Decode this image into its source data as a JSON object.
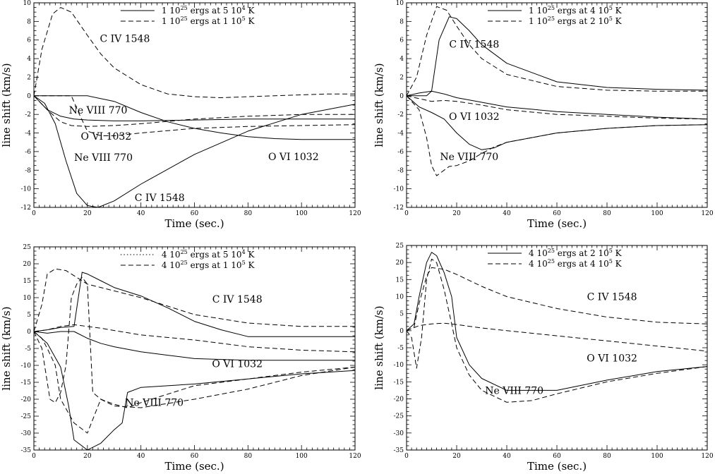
{
  "chart_data": [
    {
      "type": "line",
      "xlabel": "Time (sec.)",
      "ylabel": "line shift (km/s)",
      "xlim": [
        0,
        120
      ],
      "ylim": [
        -12,
        10
      ],
      "xticks": [
        0,
        20,
        40,
        60,
        80,
        100,
        120
      ],
      "yticks": [
        -12,
        -10,
        -8,
        -6,
        -4,
        -2,
        0,
        2,
        4,
        6,
        8,
        10
      ],
      "legend_position": "top-right",
      "legend": [
        {
          "text": "1 10^25 ergs at 5 10^4 K",
          "pre": "1  10",
          "sup": "25",
          "mid": "  ergs at 5 10",
          "sup2": "4",
          "post": " K",
          "style": "solid"
        },
        {
          "text": "1 10^25 ergs at 1 10^5 K",
          "pre": "1  10",
          "sup": "25",
          "mid": "  ergs at 1 10",
          "sup2": "5",
          "post": " K",
          "style": "dashed"
        }
      ],
      "annotations": [
        {
          "text": "C IV 1548",
          "x": 34,
          "y": 5.8
        },
        {
          "text": "Ne VIII 770",
          "x": 24,
          "y": -1.9
        },
        {
          "text": "O VI 1032",
          "x": 27,
          "y": -4.7
        },
        {
          "text": "Ne VIII 770",
          "x": 26,
          "y": -7.0
        },
        {
          "text": "O VI 1032",
          "x": 97,
          "y": -6.9
        },
        {
          "text": "C IV 1548",
          "x": 47,
          "y": -11.3
        }
      ],
      "series": [
        {
          "style": "solid",
          "x": [
            0,
            10,
            20,
            30,
            40,
            50,
            60,
            70,
            80,
            90,
            100,
            110,
            120
          ],
          "y": [
            0,
            0,
            0,
            -0.6,
            -1.8,
            -2.8,
            -3.5,
            -4.0,
            -4.4,
            -4.6,
            -4.7,
            -4.7,
            -4.7
          ]
        },
        {
          "style": "solid",
          "x": [
            0,
            4,
            8,
            12,
            16,
            20,
            24,
            30,
            40,
            60,
            80,
            100,
            120
          ],
          "y": [
            0,
            -0.8,
            -3.0,
            -7.0,
            -10.5,
            -11.8,
            -12.0,
            -11.3,
            -9.5,
            -6.3,
            -3.8,
            -2.0,
            -0.9
          ]
        },
        {
          "style": "solid",
          "x": [
            0,
            5,
            10,
            15,
            20,
            30,
            40,
            60,
            80,
            100,
            120
          ],
          "y": [
            0,
            -1.5,
            -2.2,
            -2.5,
            -2.6,
            -2.7,
            -2.7,
            -2.6,
            -2.5,
            -2.5,
            -2.5
          ]
        },
        {
          "style": "dashed",
          "x": [
            0,
            3,
            7,
            10,
            14,
            20,
            25,
            30,
            40,
            50,
            60,
            70,
            80,
            90,
            100,
            110,
            120
          ],
          "y": [
            0,
            5.0,
            8.8,
            9.5,
            9.0,
            6.5,
            4.5,
            3.0,
            1.2,
            0.2,
            -0.1,
            -0.2,
            -0.1,
            0,
            0.1,
            0.2,
            0.2
          ]
        },
        {
          "style": "dashed",
          "x": [
            0,
            5,
            10,
            14,
            20,
            30,
            40,
            60,
            80,
            100,
            120
          ],
          "y": [
            0,
            -1.5,
            -2.8,
            -3.2,
            -3.3,
            -3.2,
            -3.0,
            -2.5,
            -2.2,
            -2.0,
            -2.0
          ]
        },
        {
          "style": "dashed",
          "x": [
            0,
            14,
            17,
            20,
            25,
            30,
            40,
            60,
            80,
            100,
            120
          ],
          "y": [
            0,
            0,
            -2.0,
            -3.8,
            -4.3,
            -4.3,
            -4.0,
            -3.5,
            -3.3,
            -3.2,
            -3.1
          ]
        }
      ]
    },
    {
      "type": "line",
      "xlabel": "Time (sec.)",
      "ylabel": "line shift (km/s)",
      "xlim": [
        0,
        120
      ],
      "ylim": [
        -12,
        10
      ],
      "xticks": [
        0,
        20,
        40,
        60,
        80,
        100,
        120
      ],
      "yticks": [
        -12,
        -10,
        -8,
        -6,
        -4,
        -2,
        0,
        2,
        4,
        6,
        8,
        10
      ],
      "legend_position": "top-right",
      "legend": [
        {
          "text": "1 10^25 ergs at 4 10^5 K",
          "pre": "1  10",
          "sup": "25",
          "mid": "  ergs at 4 10",
          "sup2": "5",
          "post": " K",
          "style": "solid"
        },
        {
          "text": "1 10^25 ergs at 2 10^5 K",
          "pre": "1  10",
          "sup": "25",
          "mid": "  ergs at 2 10",
          "sup2": "5",
          "post": " K",
          "style": "dashed"
        }
      ],
      "annotations": [
        {
          "text": "C IV 1548",
          "x": 27,
          "y": 5.2
        },
        {
          "text": "O VI 1032",
          "x": 27,
          "y": -2.6
        },
        {
          "text": "Ne VIII 770",
          "x": 25,
          "y": -6.9
        }
      ],
      "series": [
        {
          "style": "solid",
          "x": [
            0,
            8,
            10,
            13,
            17,
            20,
            25,
            30,
            40,
            60,
            80,
            100,
            120
          ],
          "y": [
            0,
            0,
            0.5,
            6.0,
            8.5,
            8.3,
            7.0,
            5.5,
            3.5,
            1.5,
            0.9,
            0.7,
            0.6
          ]
        },
        {
          "style": "solid",
          "x": [
            0,
            5,
            10,
            15,
            20,
            30,
            40,
            60,
            80,
            100,
            120
          ],
          "y": [
            0,
            0.3,
            0.5,
            0.2,
            -0.2,
            -0.7,
            -1.2,
            -1.7,
            -2.0,
            -2.3,
            -2.5
          ]
        },
        {
          "style": "solid",
          "x": [
            0,
            5,
            10,
            15,
            20,
            25,
            30,
            35,
            40,
            60,
            80,
            100,
            120
          ],
          "y": [
            0,
            -1.2,
            -1.8,
            -2.5,
            -4.0,
            -5.2,
            -5.8,
            -5.6,
            -5.0,
            -4.0,
            -3.5,
            -3.2,
            -3.1
          ]
        },
        {
          "style": "dashed",
          "x": [
            0,
            4,
            8,
            12,
            16,
            20,
            25,
            30,
            40,
            60,
            80,
            100,
            120
          ],
          "y": [
            0,
            2.0,
            6.5,
            9.6,
            9.2,
            7.5,
            5.5,
            4.0,
            2.3,
            1.0,
            0.6,
            0.5,
            0.5
          ]
        },
        {
          "style": "dashed",
          "x": [
            0,
            5,
            10,
            15,
            20,
            30,
            40,
            60,
            80,
            100,
            120
          ],
          "y": [
            0,
            -0.3,
            -0.6,
            -0.5,
            -0.6,
            -1.0,
            -1.5,
            -2.0,
            -2.2,
            -2.4,
            -2.5
          ]
        },
        {
          "style": "dashed",
          "x": [
            0,
            5,
            8,
            10,
            12,
            14,
            17,
            20,
            25,
            30,
            35,
            40,
            60,
            80,
            100,
            120
          ],
          "y": [
            0,
            -1.5,
            -4.5,
            -7.5,
            -8.6,
            -8.2,
            -7.6,
            -7.5,
            -7.0,
            -6.2,
            -5.5,
            -5.0,
            -4.0,
            -3.5,
            -3.2,
            -3.1
          ]
        }
      ]
    },
    {
      "type": "line",
      "xlabel": "Time (sec.)",
      "ylabel": "line shift (km/s)",
      "xlim": [
        0,
        120
      ],
      "ylim": [
        -35,
        25
      ],
      "xticks": [
        0,
        20,
        40,
        60,
        80,
        100,
        120
      ],
      "yticks": [
        -35,
        -30,
        -25,
        -20,
        -15,
        -10,
        -5,
        0,
        5,
        10,
        15,
        20,
        25
      ],
      "legend_position": "top-right",
      "legend": [
        {
          "text": "4 10^25 ergs at 5 10^4 K",
          "pre": "4  10",
          "sup": "25",
          "mid": "  ergs at 5 10",
          "sup2": "4",
          "post": " K",
          "style": "dotted"
        },
        {
          "text": "4 10^25 ergs at 1 10^5 K",
          "pre": "4  10",
          "sup": "25",
          "mid": "  ergs at 1 10",
          "sup2": "5",
          "post": " K",
          "style": "dashed"
        }
      ],
      "annotations": [
        {
          "text": "C IV 1548",
          "x": 76,
          "y": 8.5
        },
        {
          "text": "O VI 1032",
          "x": 76,
          "y": -10.5
        },
        {
          "text": "Ne VIII 770",
          "x": 45,
          "y": -22.0
        }
      ],
      "series": [
        {
          "style": "solid",
          "x": [
            0,
            5,
            10,
            15,
            18,
            20,
            25,
            30,
            40,
            50,
            60,
            70,
            80,
            100,
            120
          ],
          "y": [
            0,
            0.5,
            1.2,
            1.5,
            17.5,
            17.0,
            15.0,
            13.0,
            10.5,
            7.0,
            3.0,
            0.5,
            -1.5,
            -1.5,
            -1.5
          ]
        },
        {
          "style": "solid",
          "x": [
            0,
            5,
            10,
            15,
            20,
            25,
            30,
            40,
            50,
            60,
            80,
            100,
            120
          ],
          "y": [
            0,
            -0.5,
            0,
            0,
            -2.0,
            -3.5,
            -4.5,
            -6.0,
            -7.0,
            -8.0,
            -8.5,
            -8.5,
            -8.5
          ]
        },
        {
          "style": "solid",
          "x": [
            0,
            5,
            10,
            13,
            15,
            20,
            25,
            30,
            33,
            35,
            40,
            60,
            80,
            100,
            120
          ],
          "y": [
            0,
            -3.5,
            -10.5,
            -22.0,
            -32.0,
            -35.0,
            -33.0,
            -29.0,
            -27.0,
            -18.0,
            -16.5,
            -15.5,
            -14.0,
            -12.5,
            -11.5
          ]
        },
        {
          "style": "dashed",
          "x": [
            0,
            3,
            5,
            8,
            12,
            15,
            20,
            25,
            30,
            40,
            50,
            60,
            80,
            100,
            120
          ],
          "y": [
            0,
            8.0,
            17.0,
            18.5,
            18.0,
            16.5,
            14.0,
            13.0,
            12.0,
            10.0,
            7.5,
            5.0,
            2.5,
            1.5,
            1.5
          ]
        },
        {
          "style": "dashed",
          "x": [
            0,
            3,
            5,
            8,
            10,
            15,
            20,
            25,
            30,
            40,
            60,
            80,
            100,
            120
          ],
          "y": [
            0,
            -2.0,
            -5.0,
            -10.0,
            -20.0,
            -27.0,
            -30.0,
            -20.0,
            -22.0,
            -22.5,
            -20.0,
            -17.0,
            -13.0,
            -10.5
          ]
        },
        {
          "style": "dashed",
          "x": [
            0,
            5,
            10,
            15,
            20,
            25,
            30,
            40,
            60,
            80,
            100,
            120
          ],
          "y": [
            0,
            0.5,
            1.5,
            2.0,
            1.5,
            1.0,
            0.3,
            -1.0,
            -2.5,
            -4.5,
            -5.5,
            -6.0
          ]
        },
        {
          "style": "dashed",
          "x": [
            0,
            3,
            6,
            8,
            10,
            12,
            14,
            16,
            18,
            20,
            22,
            25,
            30,
            35,
            40,
            60,
            80,
            100,
            120
          ],
          "y": [
            0,
            -5.0,
            -20.0,
            -21.0,
            -18.0,
            -10.0,
            10.0,
            14.0,
            16.0,
            14.0,
            -18.0,
            -20.0,
            -21.5,
            -22.5,
            -21.0,
            -16.0,
            -14.0,
            -12.0,
            -10.5
          ]
        }
      ]
    },
    {
      "type": "line",
      "xlabel": "Time (sec.)",
      "ylabel": "line shift (km/s)",
      "xlim": [
        0,
        120
      ],
      "ylim": [
        -35,
        25
      ],
      "xticks": [
        0,
        20,
        40,
        60,
        80,
        100,
        120
      ],
      "yticks": [
        -35,
        -30,
        -25,
        -20,
        -15,
        -10,
        -5,
        0,
        5,
        10,
        15,
        20,
        25
      ],
      "legend_position": "top-right",
      "legend": [
        {
          "text": "4 10^25 ergs at 2 10^5 K",
          "pre": "4  10",
          "sup": "25",
          "mid": "  ergs at 2 10",
          "sup2": "5",
          "post": " K",
          "style": "solid"
        },
        {
          "text": "4 10^25 ergs at 4 10^5 K",
          "pre": "4  10",
          "sup": "25",
          "mid": "  ergs at 4 10",
          "sup2": "5",
          "post": " K",
          "style": "dashed"
        }
      ],
      "annotations": [
        {
          "text": "C IV 1548",
          "x": 82,
          "y": 9.0
        },
        {
          "text": "O VI 1032",
          "x": 82,
          "y": -9.0
        },
        {
          "text": "Ne VIII 770",
          "x": 43,
          "y": -18.5
        }
      ],
      "series": [
        {
          "style": "solid",
          "x": [
            0,
            3,
            5,
            8,
            10,
            12,
            15,
            18,
            20,
            25,
            30,
            40,
            60,
            80,
            100,
            120
          ],
          "y": [
            0,
            2.0,
            10.0,
            20.0,
            23.0,
            22.0,
            17.0,
            10.0,
            -2.0,
            -10.0,
            -14.0,
            -17.5,
            -17.5,
            -14.5,
            -12.0,
            -10.5
          ]
        },
        {
          "style": "dashed",
          "x": [
            0,
            3,
            5,
            8,
            10,
            15,
            20,
            30,
            40,
            60,
            80,
            100,
            120
          ],
          "y": [
            0,
            1.0,
            8.0,
            16.0,
            18.5,
            18.0,
            16.5,
            13.0,
            10.0,
            6.5,
            4.0,
            2.5,
            2.0
          ]
        },
        {
          "style": "dashed",
          "x": [
            0,
            5,
            10,
            15,
            20,
            25,
            30,
            40,
            60,
            80,
            100,
            120
          ],
          "y": [
            0,
            1.5,
            2.0,
            2.2,
            1.8,
            1.3,
            0.8,
            0,
            -1.5,
            -3.0,
            -4.5,
            -6.0
          ]
        },
        {
          "style": "dashed",
          "x": [
            0,
            2,
            4,
            6,
            8,
            10,
            12,
            15,
            18,
            20,
            25,
            30,
            40,
            50,
            60,
            80,
            100,
            120
          ],
          "y": [
            0,
            -2.0,
            -11.0,
            -2.0,
            15.0,
            21.0,
            20.0,
            12.0,
            2.0,
            -5.0,
            -13.0,
            -17.5,
            -21.0,
            -20.5,
            -18.5,
            -15.0,
            -12.5,
            -10.5
          ]
        }
      ]
    }
  ]
}
